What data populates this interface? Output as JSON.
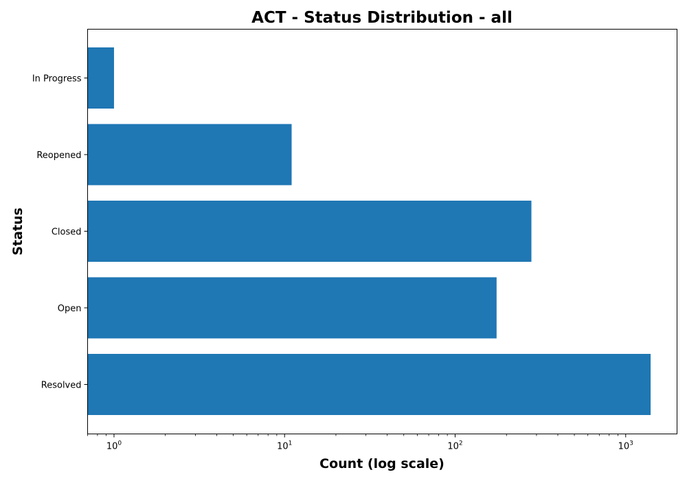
{
  "chart_data": {
    "type": "bar",
    "orientation": "horizontal",
    "title": "ACT - Status Distribution - all",
    "xlabel": "Count (log scale)",
    "ylabel": "Status",
    "x_scale": "log",
    "xlim": [
      0.7,
      2000
    ],
    "x_ticks": [
      {
        "base": "10",
        "exp": "0",
        "value": 1
      },
      {
        "base": "10",
        "exp": "1",
        "value": 10
      },
      {
        "base": "10",
        "exp": "2",
        "value": 100
      },
      {
        "base": "10",
        "exp": "3",
        "value": 1000
      }
    ],
    "categories": [
      "In Progress",
      "Reopened",
      "Closed",
      "Open",
      "Resolved"
    ],
    "values": [
      1,
      11,
      280,
      175,
      1400
    ],
    "color": "#1f77b4",
    "grid": false,
    "legend": "none"
  }
}
